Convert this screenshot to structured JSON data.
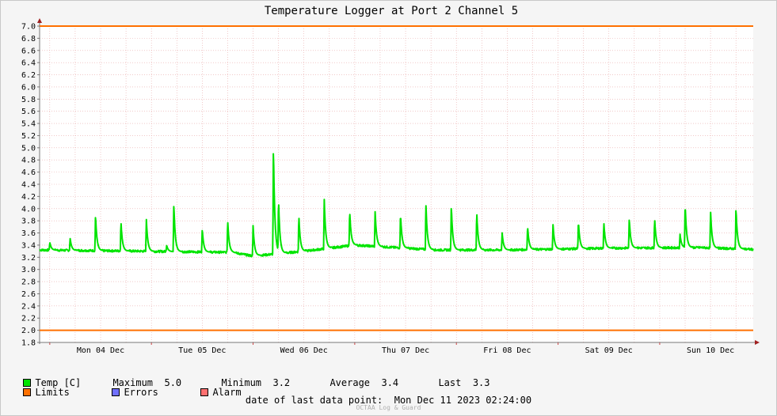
{
  "chart_data": {
    "type": "line",
    "title": "Temperature Logger at Port 2 Channel 5",
    "xlabel": "",
    "ylabel": "",
    "ylim": [
      1.8,
      7.0
    ],
    "yticks": [
      "1.8",
      "2.0",
      "2.2",
      "2.4",
      "2.6",
      "2.8",
      "3.0",
      "3.2",
      "3.4",
      "3.6",
      "3.8",
      "4.0",
      "4.2",
      "4.4",
      "4.6",
      "4.8",
      "5.0",
      "5.2",
      "5.4",
      "5.6",
      "5.8",
      "6.0",
      "6.2",
      "6.4",
      "6.6",
      "6.8",
      "7.0"
    ],
    "xlim": [
      -0.1,
      6.92
    ],
    "days": [
      "Mon 04 Dec",
      "Tue 05 Dec",
      "Wed 06 Dec",
      "Thu 07 Dec",
      "Fri 08 Dec",
      "Sat 09 Dec",
      "Sun 10 Dec"
    ],
    "grid": true,
    "limits": {
      "upper": 7.0,
      "lower": 2.0
    },
    "series": [
      {
        "name": "Temp [C]",
        "color": "#00e400",
        "x_unit": "days since Mon 04 Dec 00:00",
        "baseline": [
          [
            -0.1,
            3.32
          ],
          [
            0.9,
            3.3
          ],
          [
            1.8,
            3.28
          ],
          [
            2.0,
            3.22
          ],
          [
            2.5,
            3.3
          ],
          [
            3.0,
            3.4
          ],
          [
            3.8,
            3.32
          ],
          [
            4.5,
            3.32
          ],
          [
            5.5,
            3.35
          ],
          [
            6.4,
            3.36
          ],
          [
            6.92,
            3.33
          ]
        ],
        "peaks": [
          {
            "x": 0.0,
            "y": 3.45
          },
          {
            "x": 0.2,
            "y": 3.52
          },
          {
            "x": 0.45,
            "y": 3.9
          },
          {
            "x": 0.7,
            "y": 3.8
          },
          {
            "x": 0.95,
            "y": 3.82
          },
          {
            "x": 1.15,
            "y": 3.4
          },
          {
            "x": 1.22,
            "y": 4.1
          },
          {
            "x": 1.5,
            "y": 3.67
          },
          {
            "x": 1.75,
            "y": 3.82
          },
          {
            "x": 2.0,
            "y": 3.72
          },
          {
            "x": 2.2,
            "y": 5.05
          },
          {
            "x": 2.25,
            "y": 4.18
          },
          {
            "x": 2.45,
            "y": 3.9
          },
          {
            "x": 2.7,
            "y": 4.15
          },
          {
            "x": 2.95,
            "y": 3.98
          },
          {
            "x": 3.2,
            "y": 3.97
          },
          {
            "x": 3.45,
            "y": 3.93
          },
          {
            "x": 3.7,
            "y": 4.1
          },
          {
            "x": 3.95,
            "y": 4.06
          },
          {
            "x": 4.2,
            "y": 3.96
          },
          {
            "x": 4.45,
            "y": 3.6
          },
          {
            "x": 4.7,
            "y": 3.72
          },
          {
            "x": 4.95,
            "y": 3.75
          },
          {
            "x": 5.2,
            "y": 3.8
          },
          {
            "x": 5.45,
            "y": 3.78
          },
          {
            "x": 5.7,
            "y": 3.85
          },
          {
            "x": 5.95,
            "y": 3.85
          },
          {
            "x": 6.2,
            "y": 3.58
          },
          {
            "x": 6.25,
            "y": 4.1
          },
          {
            "x": 6.5,
            "y": 3.98
          },
          {
            "x": 6.75,
            "y": 4.02
          }
        ]
      }
    ],
    "legend": [
      {
        "label": "Temp [C]",
        "color": "#00e400"
      },
      {
        "label": "Limits",
        "color": "#ff7000"
      },
      {
        "label": "Errors",
        "color": "#7070ff"
      },
      {
        "label": "Alarm",
        "color": "#ff7070"
      }
    ],
    "stats": {
      "maximum_label": "Maximum",
      "maximum": "5.0",
      "minimum_label": "Minimum",
      "minimum": "3.2",
      "average_label": "Average",
      "average": "3.4",
      "last_label": "Last",
      "last": "3.3"
    },
    "footer": "date of last data point:  Mon Dec 11 2023 02:24:00",
    "credit": "OCTAA Log & Guard"
  }
}
